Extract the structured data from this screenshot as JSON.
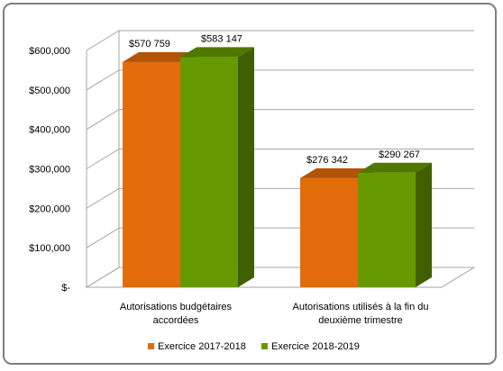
{
  "chart_data": {
    "type": "bar",
    "style": "3d-clustered-column",
    "categories": [
      [
        "Autorisations budgétaires",
        "accordées"
      ],
      [
        "Autorisations utilisés à la fin du",
        "deuxième trimestre"
      ]
    ],
    "series": [
      {
        "name": "Exercice 2017-2018",
        "color": "#E36C0A",
        "values": [
          570759,
          276342
        ],
        "value_labels": [
          "$570 759",
          "$276 342"
        ]
      },
      {
        "name": "Exercice 2018-2019",
        "color": "#669900",
        "values": [
          583147,
          290267
        ],
        "value_labels": [
          "$583 147",
          "$290 267"
        ]
      }
    ],
    "y_ticks": [
      0,
      100000,
      200000,
      300000,
      400000,
      500000,
      600000
    ],
    "y_tick_labels": [
      "$-",
      "$100,000",
      "$200,000",
      "$300,000",
      "$400,000",
      "$500,000",
      "$600,000"
    ],
    "ylim": [
      0,
      600000
    ],
    "title": "",
    "xlabel": "",
    "ylabel": "",
    "grid": true,
    "legend_position": "bottom"
  }
}
